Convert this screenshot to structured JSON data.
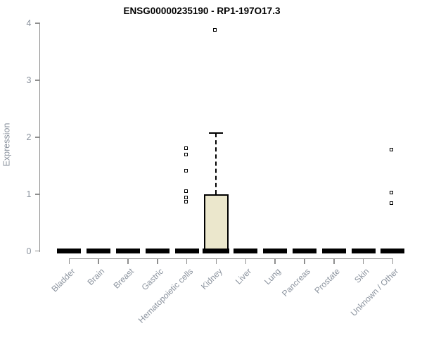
{
  "chart_data": {
    "type": "box",
    "title": "ENSG00000235190 - RP1-197O17.3",
    "xlabel": "",
    "ylabel": "Expression",
    "ylim": [
      0,
      4
    ],
    "yticks": [
      0,
      1,
      2,
      3,
      4
    ],
    "grid": false,
    "legend": null,
    "categories": [
      "Bladder",
      "Brain",
      "Breast",
      "Gastric",
      "Hematopoietic cells",
      "Kidney",
      "Liver",
      "Lung",
      "Pancreas",
      "Prostate",
      "Skin",
      "Unknown / Other"
    ],
    "boxes": [
      {
        "category": "Bladder",
        "q1": 0,
        "median": 0,
        "q3": 0,
        "whisker_low": 0,
        "whisker_high": 0,
        "outliers": []
      },
      {
        "category": "Brain",
        "q1": 0,
        "median": 0,
        "q3": 0,
        "whisker_low": 0,
        "whisker_high": 0,
        "outliers": []
      },
      {
        "category": "Breast",
        "q1": 0,
        "median": 0,
        "q3": 0,
        "whisker_low": 0,
        "whisker_high": 0,
        "outliers": []
      },
      {
        "category": "Gastric",
        "q1": 0,
        "median": 0,
        "q3": 0,
        "whisker_low": 0,
        "whisker_high": 0,
        "outliers": []
      },
      {
        "category": "Hematopoietic cells",
        "q1": 0,
        "median": 0,
        "q3": 0,
        "whisker_low": 0,
        "whisker_high": 0,
        "outliers": [
          1.81,
          1.7,
          1.41,
          1.05,
          0.94,
          0.87
        ]
      },
      {
        "category": "Kidney",
        "q1": 0,
        "median": 0,
        "q3": 1.0,
        "whisker_low": 0,
        "whisker_high": 2.07,
        "outliers": [
          3.88
        ]
      },
      {
        "category": "Liver",
        "q1": 0,
        "median": 0,
        "q3": 0,
        "whisker_low": 0,
        "whisker_high": 0,
        "outliers": []
      },
      {
        "category": "Lung",
        "q1": 0,
        "median": 0,
        "q3": 0,
        "whisker_low": 0,
        "whisker_high": 0,
        "outliers": []
      },
      {
        "category": "Pancreas",
        "q1": 0,
        "median": 0,
        "q3": 0,
        "whisker_low": 0,
        "whisker_high": 0,
        "outliers": []
      },
      {
        "category": "Prostate",
        "q1": 0,
        "median": 0,
        "q3": 0,
        "whisker_low": 0,
        "whisker_high": 0,
        "outliers": []
      },
      {
        "category": "Skin",
        "q1": 0,
        "median": 0,
        "q3": 0,
        "whisker_low": 0,
        "whisker_high": 0,
        "outliers": []
      },
      {
        "category": "Unknown / Other",
        "q1": 0,
        "median": 0,
        "q3": 0,
        "whisker_low": 0,
        "whisker_high": 0,
        "outliers": [
          1.78,
          1.03,
          0.84
        ]
      }
    ]
  },
  "colors": {
    "box_fill": "#EBE7CC",
    "box_border": "#000000",
    "median": "#000000",
    "axis_line": "#8F8F8F",
    "axis_text": "#8B939E",
    "title_text": "#000000",
    "background": "#FFFFFF"
  }
}
